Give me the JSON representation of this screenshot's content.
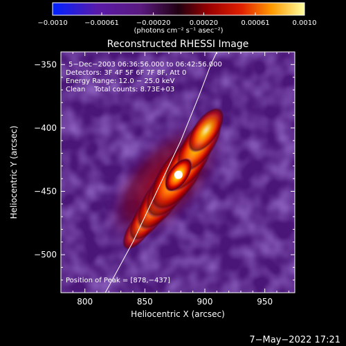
{
  "chart_data": {
    "type": "heatmap",
    "title": "Reconstructed RHESSI Image",
    "xlabel": "Heliocentric X (arcsec)",
    "ylabel": "Heliocentric Y (arcsec)",
    "xlim": [
      780,
      975
    ],
    "ylim": [
      -530,
      -340
    ],
    "x_ticks": [
      800,
      850,
      900,
      950
    ],
    "y_ticks": [
      -500,
      -450,
      -400,
      -350
    ],
    "x_tick_labels": [
      "800",
      "850",
      "900",
      "950"
    ],
    "y_tick_labels": [
      "−500",
      "−450",
      "−400",
      "−350"
    ],
    "colorbar": {
      "range": [
        -0.001,
        0.001
      ],
      "ticks": [
        -0.001,
        -0.00061,
        -0.0002,
        0.0002,
        0.00061,
        0.001
      ],
      "tick_labels": [
        "−0.0010",
        "−0.00061",
        "−0.00020",
        "0.00020",
        "0.00061",
        "0.0010"
      ],
      "units_label": "(photons cm⁻² s⁻¹ asec⁻²)"
    },
    "annotations": [
      "5−Dec−2003 06:36:56.000 to 06:42:56.000",
      "Detectors: 3F 4F 5F 6F 7F 8F, Att 0",
      "Energy Range: 12.0 − 25.0 keV",
      "Clean    Total counts: 8.73E+03"
    ],
    "peak_label": "Position of Peak = [878,−437]",
    "peak": [
      878,
      -437
    ],
    "limb_curve": [
      [
        817,
        -530
      ],
      [
        840,
        -490
      ],
      [
        860,
        -450
      ],
      [
        880,
        -410
      ],
      [
        895,
        -375
      ],
      [
        905,
        -350
      ],
      [
        910,
        -340
      ]
    ]
  },
  "footer": {
    "date_stamp": "7−May−2022 17:21"
  }
}
